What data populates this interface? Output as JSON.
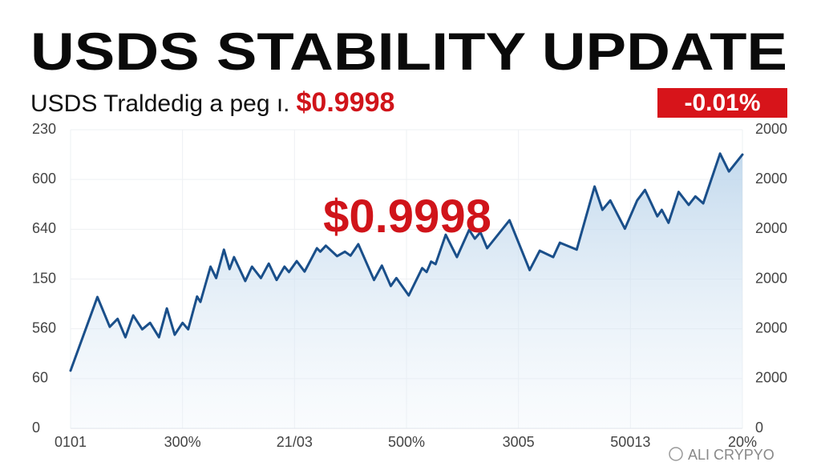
{
  "chart_data": {
    "type": "line",
    "title": "USDS STABILITY UPDATE",
    "subtitle": "USDS Traldedig a peg ı.",
    "subtitle_value": "$0.9998",
    "badge": "-0.01%",
    "annotation": "$0.9998",
    "watermark": "ALI CRYPYO",
    "color": "#1a4f8a",
    "grid": true,
    "xlim": [
      0,
      6
    ],
    "xticks": [
      {
        "value": 0,
        "label": "0101"
      },
      {
        "value": 1,
        "label": "300%"
      },
      {
        "value": 2,
        "label": "21/03"
      },
      {
        "value": 3,
        "label": "500%"
      },
      {
        "value": 4,
        "label": "3005"
      },
      {
        "value": 5,
        "label": "50013"
      },
      {
        "value": 6,
        "label": "20%"
      }
    ],
    "ylim": [
      0,
      6
    ],
    "yticks": [
      0,
      {
        "value": 1,
        "label": "60"
      },
      {
        "value": 2,
        "label": "560"
      },
      {
        "value": 3,
        "label": "150"
      },
      {
        "value": 4,
        "label": "640"
      },
      {
        "value": 5,
        "label": "600"
      },
      {
        "value": 6,
        "label": "230"
      }
    ],
    "y2lim": [
      0,
      6
    ],
    "y2ticks": [
      0,
      {
        "value": 1,
        "label": "2000"
      },
      {
        "value": 2,
        "label": "2000"
      },
      {
        "value": 3,
        "label": "2000"
      },
      {
        "value": 4,
        "label": "2000"
      },
      {
        "value": 5,
        "label": "2000"
      },
      {
        "value": 6,
        "label": "2000"
      }
    ],
    "x": [
      0.0,
      0.24,
      0.35,
      0.42,
      0.49,
      0.56,
      0.64,
      0.71,
      0.79,
      0.86,
      0.93,
      1.0,
      1.05,
      1.13,
      1.16,
      1.25,
      1.3,
      1.37,
      1.42,
      1.46,
      1.56,
      1.62,
      1.7,
      1.77,
      1.84,
      1.91,
      1.95,
      2.02,
      2.09,
      2.2,
      2.23,
      2.28,
      2.38,
      2.45,
      2.5,
      2.57,
      2.71,
      2.78,
      2.86,
      2.91,
      3.02,
      3.14,
      3.18,
      3.22,
      3.26,
      3.35,
      3.45,
      3.56,
      3.61,
      3.66,
      3.72,
      3.92,
      4.1,
      4.19,
      4.31,
      4.37,
      4.52,
      4.68,
      4.75,
      4.82,
      4.95,
      5.06,
      5.13,
      5.24,
      5.28,
      5.34,
      5.43,
      5.52,
      5.58,
      5.65,
      5.8,
      5.88,
      6.0
    ],
    "values": [
      1.16,
      2.64,
      2.04,
      2.2,
      1.83,
      2.27,
      1.99,
      2.12,
      1.83,
      2.41,
      1.88,
      2.12,
      1.99,
      2.65,
      2.54,
      3.25,
      3.02,
      3.59,
      3.2,
      3.44,
      2.96,
      3.25,
      3.02,
      3.31,
      2.98,
      3.25,
      3.14,
      3.36,
      3.15,
      3.62,
      3.55,
      3.67,
      3.46,
      3.55,
      3.47,
      3.7,
      2.98,
      3.27,
      2.86,
      3.02,
      2.67,
      3.22,
      3.14,
      3.35,
      3.3,
      3.89,
      3.44,
      3.99,
      3.81,
      3.94,
      3.62,
      4.18,
      3.18,
      3.57,
      3.44,
      3.73,
      3.59,
      4.86,
      4.39,
      4.58,
      4.01,
      4.58,
      4.79,
      4.26,
      4.39,
      4.13,
      4.75,
      4.49,
      4.66,
      4.52,
      5.52,
      5.16,
      5.5
    ]
  }
}
